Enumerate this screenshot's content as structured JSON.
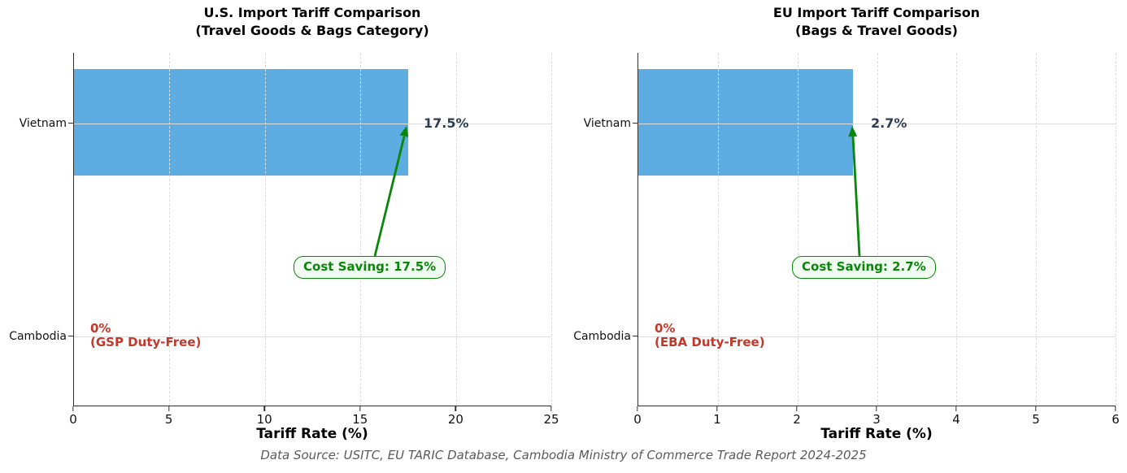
{
  "colors": {
    "bar": "#5dade2",
    "value_label": "#2c3e50",
    "saving_green": "#0a870a",
    "saving_green_bg": "#f2fbf2",
    "duty_free_red": "#c0392b",
    "grid": "#dcdcdc",
    "axis": "#2f2f2f",
    "footer_text": "#5a5a5a"
  },
  "footer": "Data Source: USITC, EU TARIC Database, Cambodia Ministry of Commerce Trade Report 2024-2025",
  "chart_data": [
    {
      "type": "bar",
      "orientation": "horizontal",
      "title": "U.S. Import Tariff Comparison (Travel Goods & Bags Category)",
      "title_line1": "U.S. Import Tariff Comparison",
      "title_line2": "(Travel Goods & Bags Category)",
      "xlabel": "Tariff Rate (%)",
      "xlim": [
        0,
        25
      ],
      "x_ticks": [
        0,
        5,
        10,
        15,
        20,
        25
      ],
      "categories": [
        "Vietnam",
        "Cambodia"
      ],
      "values": [
        17.5,
        0
      ],
      "bar_value_label": "17.5%",
      "zero_label_line1": "0%",
      "zero_label_line2": "(GSP Duty-Free)",
      "annotation": "Cost Saving: 17.5%",
      "grid": true,
      "legend": false
    },
    {
      "type": "bar",
      "orientation": "horizontal",
      "title": "EU Import Tariff Comparison (Bags & Travel Goods)",
      "title_line1": "EU Import Tariff Comparison",
      "title_line2": "(Bags & Travel Goods)",
      "xlabel": "Tariff Rate (%)",
      "xlim": [
        0,
        6
      ],
      "x_ticks": [
        0,
        1,
        2,
        3,
        4,
        5,
        6
      ],
      "categories": [
        "Vietnam",
        "Cambodia"
      ],
      "values": [
        2.7,
        0
      ],
      "bar_value_label": "2.7%",
      "zero_label_line1": "0%",
      "zero_label_line2": "(EBA Duty-Free)",
      "annotation": "Cost Saving: 2.7%",
      "grid": true,
      "legend": false
    }
  ]
}
